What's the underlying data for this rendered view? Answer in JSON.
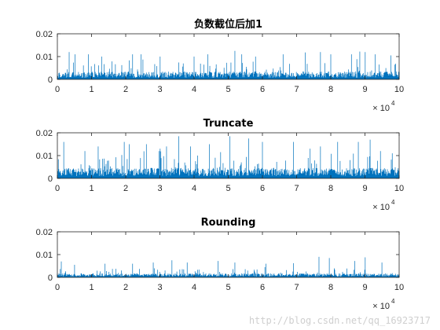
{
  "figure": {
    "background": "#ffffff",
    "watermark": "http://blog.csdn.net/qq_16923717"
  },
  "style": {
    "line_color": "#0072BD",
    "axis_color": "#262626"
  },
  "chart_data": [
    {
      "type": "line",
      "title": "负数截位后加1",
      "xlabel": "",
      "ylabel": "",
      "xlim": [
        0,
        100000
      ],
      "ylim": [
        0,
        0.02
      ],
      "x_ticks": [
        0,
        1,
        2,
        3,
        4,
        5,
        6,
        7,
        8,
        9,
        10
      ],
      "y_ticks": [
        "0",
        "0.01",
        "0.02"
      ],
      "x_multiplier": "× 10",
      "x_exponent": "4",
      "grid": false,
      "series": [
        {
          "x_range": [
            0,
            100000
          ],
          "typical_level": 0.003,
          "peaks": [
            [
              3500,
              0.012
            ],
            [
              5200,
              0.011
            ],
            [
              9000,
              0.011
            ],
            [
              13000,
              0.01
            ],
            [
              22000,
              0.011
            ],
            [
              24500,
              0.011
            ],
            [
              30000,
              0.01
            ],
            [
              40000,
              0.01
            ],
            [
              44000,
              0.011
            ],
            [
              52000,
              0.0125
            ],
            [
              54000,
              0.011
            ],
            [
              58000,
              0.01
            ],
            [
              66000,
              0.011
            ],
            [
              72500,
              0.0118
            ],
            [
              77000,
              0.012
            ],
            [
              80000,
              0.011
            ],
            [
              86000,
              0.011
            ],
            [
              88500,
              0.0122
            ],
            [
              90000,
              0.012
            ],
            [
              93000,
              0.011
            ],
            [
              97500,
              0.0105
            ]
          ]
        }
      ]
    },
    {
      "type": "line",
      "title": "Truncate",
      "xlabel": "",
      "ylabel": "",
      "xlim": [
        0,
        100000
      ],
      "ylim": [
        0,
        0.02
      ],
      "x_ticks": [
        0,
        1,
        2,
        3,
        4,
        5,
        6,
        7,
        8,
        9,
        10
      ],
      "y_ticks": [
        "0",
        "0.01",
        "0.02"
      ],
      "x_multiplier": "× 10",
      "x_exponent": "4",
      "grid": false,
      "series": [
        {
          "x_range": [
            0,
            100000
          ],
          "typical_level": 0.004,
          "peaks": [
            [
              1800,
              0.016
            ],
            [
              8000,
              0.012
            ],
            [
              12000,
              0.014
            ],
            [
              19500,
              0.016
            ],
            [
              21000,
              0.015
            ],
            [
              26000,
              0.015
            ],
            [
              30000,
              0.013
            ],
            [
              32000,
              0.014
            ],
            [
              35500,
              0.0185
            ],
            [
              39000,
              0.014
            ],
            [
              44500,
              0.015
            ],
            [
              50500,
              0.0185
            ],
            [
              56000,
              0.0175
            ],
            [
              60000,
              0.016
            ],
            [
              69000,
              0.016
            ],
            [
              74000,
              0.013
            ],
            [
              77000,
              0.014
            ],
            [
              82000,
              0.016
            ],
            [
              88000,
              0.016
            ],
            [
              91500,
              0.017
            ],
            [
              94500,
              0.012
            ],
            [
              98000,
              0.011
            ]
          ]
        }
      ]
    },
    {
      "type": "line",
      "title": "Rounding",
      "xlabel": "",
      "ylabel": "",
      "xlim": [
        0,
        100000
      ],
      "ylim": [
        0,
        0.02
      ],
      "x_ticks": [
        0,
        1,
        2,
        3,
        4,
        5,
        6,
        7,
        8,
        9,
        10
      ],
      "y_ticks": [
        "0",
        "0.01",
        "0.02"
      ],
      "x_multiplier": "× 10",
      "x_exponent": "4",
      "grid": false,
      "series": [
        {
          "x_range": [
            0,
            100000
          ],
          "typical_level": 0.0015,
          "peaks": [
            [
              1200,
              0.007
            ],
            [
              5000,
              0.0055
            ],
            [
              14000,
              0.006
            ],
            [
              22000,
              0.006
            ],
            [
              28000,
              0.0065
            ],
            [
              33500,
              0.0075
            ],
            [
              38000,
              0.0065
            ],
            [
              47000,
              0.0072
            ],
            [
              52000,
              0.0065
            ],
            [
              61000,
              0.006
            ],
            [
              69000,
              0.0062
            ],
            [
              76500,
              0.009
            ],
            [
              79500,
              0.0085
            ],
            [
              87000,
              0.0072
            ],
            [
              90000,
              0.0088
            ],
            [
              95000,
              0.0065
            ]
          ]
        }
      ]
    }
  ]
}
